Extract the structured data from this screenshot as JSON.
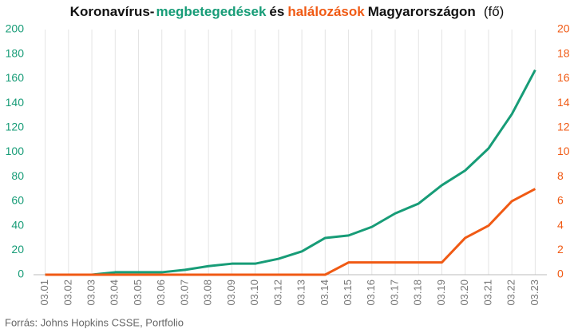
{
  "chart_data": {
    "type": "line",
    "title_parts": [
      "Koronavírus-",
      "megbetegedések",
      "és",
      "halálozások",
      "Magyarországon",
      "(fő)"
    ],
    "source": "Forrás: Johns Hopkins CSSE, Portfolio",
    "categories": [
      "03.01",
      "03.02",
      "03.03",
      "03.04",
      "03.05",
      "03.06",
      "03.07",
      "03.08",
      "03.09",
      "03.10",
      "03.12",
      "03.13",
      "03.14",
      "03.15",
      "03.16",
      "03.17",
      "03.18",
      "03.19",
      "03.20",
      "03.21",
      "03.22",
      "03.23"
    ],
    "series": [
      {
        "color": "#179c77",
        "values": [
          0,
          0,
          0,
          2,
          2,
          2,
          4,
          7,
          9,
          9,
          13,
          19,
          30,
          32,
          39,
          50,
          58,
          73,
          85,
          103,
          131,
          167
        ]
      },
      {
        "color": "#f05a14",
        "axis": "y2",
        "values": [
          0,
          0,
          0,
          0,
          0,
          0,
          0,
          0,
          0,
          0,
          0,
          0,
          0,
          1,
          1,
          1,
          1,
          1,
          3,
          4,
          6,
          7
        ]
      }
    ],
    "ylim": [
      0,
      200
    ],
    "yticks": [
      0,
      20,
      40,
      60,
      80,
      100,
      120,
      140,
      160,
      180,
      200
    ],
    "y2lim": [
      0,
      20
    ],
    "y2ticks": [
      0,
      2,
      4,
      6,
      8,
      10,
      12,
      14,
      16,
      18,
      20
    ],
    "title_colors": [
      null,
      0,
      null,
      1,
      null,
      null
    ]
  }
}
